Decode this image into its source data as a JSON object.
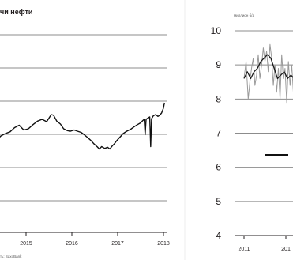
{
  "left_panel": {
    "title": "чи нефти",
    "source": "ть: SaxoBank"
  },
  "right_panel": {
    "unit_label": "миллион б/д"
  },
  "chart_data": [
    {
      "type": "line",
      "title": "чи нефти",
      "xlabel": "",
      "ylabel": "",
      "x_ticks": [
        "2015",
        "2016",
        "2017",
        "2018"
      ],
      "grid": true,
      "series": [
        {
          "values": [
            [
              2014.0,
              150
            ],
            [
              2014.08,
              145
            ],
            [
              2014.17,
              140
            ],
            [
              2014.25,
              152
            ],
            [
              2014.35,
              160
            ],
            [
              2014.45,
              168
            ],
            [
              2014.55,
              172
            ],
            [
              2014.65,
              175
            ],
            [
              2014.75,
              182
            ],
            [
              2014.85,
              186
            ],
            [
              2014.95,
              178
            ],
            [
              2015.05,
              180
            ],
            [
              2015.15,
              187
            ],
            [
              2015.25,
              193
            ],
            [
              2015.35,
              196
            ],
            [
              2015.45,
              192
            ],
            [
              2015.55,
              204
            ],
            [
              2015.6,
              203
            ],
            [
              2015.67,
              193
            ],
            [
              2015.75,
              188
            ],
            [
              2015.82,
              180
            ],
            [
              2015.9,
              177
            ],
            [
              2015.97,
              176
            ],
            [
              2016.05,
              178
            ],
            [
              2016.12,
              176
            ],
            [
              2016.2,
              174
            ],
            [
              2016.27,
              170
            ],
            [
              2016.35,
              165
            ],
            [
              2016.42,
              160
            ],
            [
              2016.48,
              155
            ],
            [
              2016.52,
              152
            ],
            [
              2016.55,
              150
            ],
            [
              2016.6,
              146
            ],
            [
              2016.65,
              150
            ],
            [
              2016.72,
              147
            ],
            [
              2016.78,
              149
            ],
            [
              2016.83,
              146
            ],
            [
              2016.88,
              151
            ],
            [
              2016.93,
              155
            ],
            [
              2016.98,
              160
            ],
            [
              2017.05,
              166
            ],
            [
              2017.12,
              172
            ],
            [
              2017.2,
              176
            ],
            [
              2017.28,
              179
            ],
            [
              2017.35,
              183
            ],
            [
              2017.43,
              187
            ],
            [
              2017.5,
              190
            ],
            [
              2017.55,
              194
            ],
            [
              2017.58,
              196
            ],
            [
              2017.6,
              170
            ],
            [
              2017.62,
              196
            ],
            [
              2017.66,
              198
            ],
            [
              2017.7,
              200
            ],
            [
              2017.72,
              150
            ],
            [
              2017.74,
              197
            ],
            [
              2017.78,
              202
            ],
            [
              2017.83,
              204
            ],
            [
              2017.88,
              201
            ],
            [
              2017.92,
              203
            ],
            [
              2017.96,
              207
            ],
            [
              2018.0,
              215
            ],
            [
              2018.02,
              224
            ]
          ]
        }
      ]
    },
    {
      "type": "line",
      "title": "",
      "xlabel": "",
      "ylabel": "миллион б/д",
      "ylim": [
        4,
        10
      ],
      "y_ticks": [
        4,
        5,
        6,
        7,
        8,
        9,
        10
      ],
      "x_ticks": [
        "2011",
        "201"
      ],
      "grid": true,
      "series": [
        {
          "style": "grey-volatile",
          "values": [
            [
              2011.0,
              8.6
            ],
            [
              2011.05,
              9.1
            ],
            [
              2011.1,
              8.0
            ],
            [
              2011.14,
              8.5
            ],
            [
              2011.18,
              8.9
            ],
            [
              2011.22,
              9.2
            ],
            [
              2011.26,
              8.4
            ],
            [
              2011.3,
              8.7
            ],
            [
              2011.34,
              9.3
            ],
            [
              2011.38,
              8.6
            ],
            [
              2011.42,
              9.0
            ],
            [
              2011.46,
              9.5
            ],
            [
              2011.5,
              9.1
            ],
            [
              2011.54,
              9.4
            ],
            [
              2011.58,
              8.8
            ],
            [
              2011.62,
              9.6
            ],
            [
              2011.66,
              9.2
            ],
            [
              2011.7,
              8.4
            ],
            [
              2011.74,
              9.0
            ],
            [
              2011.78,
              8.2
            ],
            [
              2011.82,
              8.9
            ],
            [
              2011.86,
              8.0
            ],
            [
              2011.9,
              9.3
            ],
            [
              2011.94,
              8.6
            ],
            [
              2011.98,
              8.9
            ],
            [
              2012.02,
              7.9
            ],
            [
              2012.06,
              9.1
            ],
            [
              2012.1,
              8.4
            ],
            [
              2012.14,
              9.0
            ],
            [
              2012.18,
              8.2
            ],
            [
              2012.22,
              8.7
            ],
            [
              2012.26,
              8.5
            ]
          ]
        },
        {
          "style": "dark-smoothed",
          "values": [
            [
              2011.0,
              8.6
            ],
            [
              2011.08,
              8.8
            ],
            [
              2011.16,
              8.6
            ],
            [
              2011.24,
              8.8
            ],
            [
              2011.32,
              8.9
            ],
            [
              2011.4,
              9.1
            ],
            [
              2011.48,
              9.2
            ],
            [
              2011.56,
              9.3
            ],
            [
              2011.64,
              9.2
            ],
            [
              2011.72,
              8.9
            ],
            [
              2011.8,
              8.6
            ],
            [
              2011.88,
              8.7
            ],
            [
              2011.96,
              8.8
            ],
            [
              2012.04,
              8.6
            ],
            [
              2012.12,
              8.7
            ],
            [
              2012.2,
              8.6
            ],
            [
              2012.26,
              8.7
            ]
          ]
        }
      ]
    }
  ]
}
